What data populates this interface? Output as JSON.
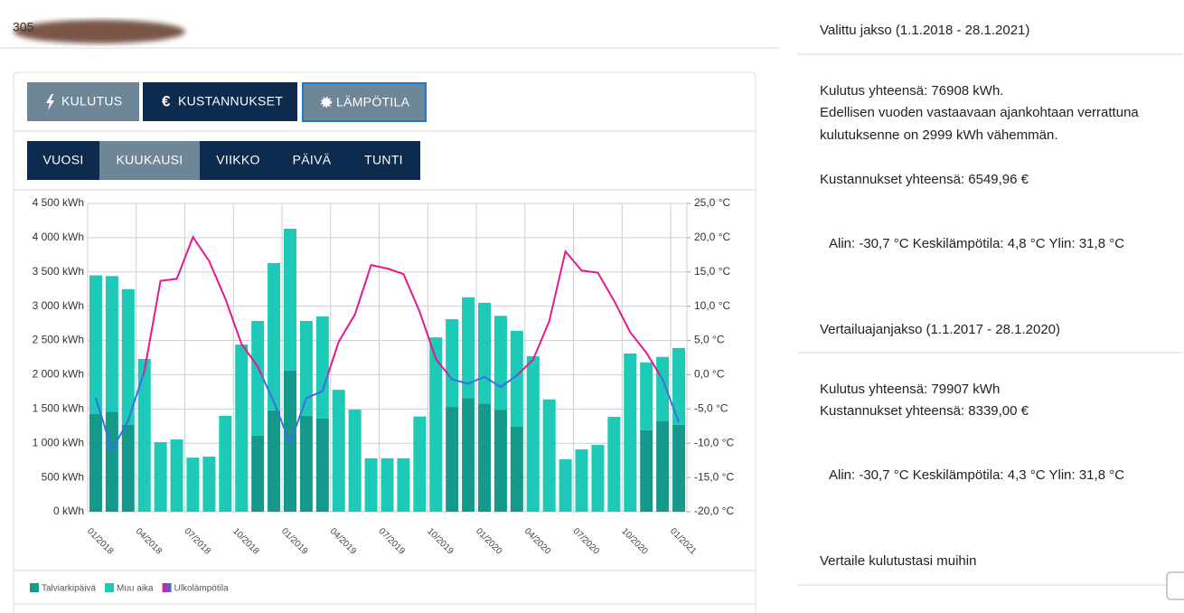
{
  "header": {
    "code": "305"
  },
  "tabs": [
    {
      "label": "KULUTUS"
    },
    {
      "icon": "€",
      "label": "KUSTANNUKSET"
    },
    {
      "label": "LÄMPÖTILA"
    }
  ],
  "periods": [
    "VUOSI",
    "KUUKAUSI",
    "VIIKKO",
    "PÄIVÄ",
    "TUNTI"
  ],
  "chart_data": {
    "type": "bar",
    "stacked": true,
    "categories": [
      "01/2018",
      null,
      null,
      "04/2018",
      null,
      null,
      "07/2018",
      null,
      null,
      "10/2018",
      null,
      null,
      "01/2019",
      null,
      null,
      "04/2019",
      null,
      null,
      "07/2019",
      null,
      null,
      "10/2019",
      null,
      null,
      "01/2020",
      null,
      null,
      "04/2020",
      null,
      null,
      "07/2020",
      null,
      null,
      "10/2020",
      null,
      null,
      "01/2021"
    ],
    "series": [
      {
        "name": "Talviarkipäivä",
        "color": "#14998a",
        "values": [
          1430,
          1460,
          1270,
          0,
          0,
          0,
          0,
          0,
          0,
          0,
          1110,
          1480,
          2060,
          1400,
          1360,
          0,
          0,
          0,
          0,
          0,
          0,
          0,
          1530,
          1660,
          1580,
          1490,
          1240,
          0,
          0,
          0,
          0,
          0,
          0,
          0,
          1190,
          1320,
          1270
        ]
      },
      {
        "name": "Muu aika",
        "color": "#1dc9b7",
        "values": [
          2020,
          1980,
          1980,
          2230,
          1015,
          1055,
          790,
          805,
          1400,
          2440,
          1675,
          2150,
          2070,
          1385,
          1490,
          1780,
          1490,
          780,
          780,
          780,
          1390,
          2545,
          1280,
          1470,
          1470,
          1370,
          1400,
          2270,
          1640,
          765,
          910,
          975,
          1385,
          2310,
          990,
          940,
          1120
        ]
      },
      {
        "name": "Ulkolämpötila",
        "type": "line",
        "axis": "y2",
        "colors": [
          "#e6178f",
          "#3d6ee6"
        ],
        "values": [
          -3.4,
          -11,
          -6.7,
          0.5,
          13.7,
          14.0,
          20.1,
          16.6,
          11.1,
          4.5,
          1.2,
          -4.0,
          -10.0,
          -3.4,
          -2.4,
          4.8,
          8.8,
          16.0,
          15.5,
          14.7,
          9.2,
          2.3,
          -0.7,
          -1.3,
          -0.3,
          -1.8,
          -0.1,
          2.2,
          7.8,
          18.0,
          15.2,
          14.9,
          10.8,
          6.2,
          3.2,
          -0.7,
          -6.9
        ]
      }
    ],
    "ylim": [
      0,
      4500
    ],
    "yticks": [
      {
        "value": 0,
        "label": "0 kWh"
      },
      {
        "value": 500,
        "label": "500 kWh"
      },
      {
        "value": 1000,
        "label": "1 000 kWh"
      },
      {
        "value": 1500,
        "label": "1 500 kWh"
      },
      {
        "value": 2000,
        "label": "2 000 kWh"
      },
      {
        "value": 2500,
        "label": "2 500 kWh"
      },
      {
        "value": 3000,
        "label": "3 000 kWh"
      },
      {
        "value": 3500,
        "label": "3 500 kWh"
      },
      {
        "value": 4000,
        "label": "4 000 kWh"
      },
      {
        "value": 4500,
        "label": "4 500 kWh"
      }
    ],
    "y2lim": [
      -20,
      25
    ],
    "y2ticks": [
      {
        "value": -20,
        "label": "-20,0 °C"
      },
      {
        "value": -15,
        "label": "-15,0 °C"
      },
      {
        "value": -10,
        "label": "-10,0 °C"
      },
      {
        "value": -5,
        "label": "-5,0 °C"
      },
      {
        "value": 0,
        "label": "0,0 °C"
      },
      {
        "value": 5,
        "label": "5,0 °C"
      },
      {
        "value": 10,
        "label": "10,0 °C"
      },
      {
        "value": 15,
        "label": "15,0 °C"
      },
      {
        "value": 20,
        "label": "20,0 °C"
      },
      {
        "value": 25,
        "label": "25,0 °C"
      }
    ],
    "grid": true,
    "legend": "bottom-left"
  },
  "summary": {
    "selected": {
      "title": "Valittu jakso  (1.1.2018 - 28.1.2021)",
      "lines": [
        "Kulutus yhteensä: 76908 kWh.",
        "Edellisen vuoden vastaavaan ajankohtaan verrattuna",
        "kulutuksenne on 2999 kWh vähemmän."
      ],
      "costs": "Kustannukset yhteensä: 6549,96 €",
      "temps": "Alin: -30,7 °C Keskilämpötila: 4,8 °C Ylin: 31,8 °C"
    },
    "comparison": {
      "title": "Vertailuajanjakso (1.1.2017 - 28.1.2020)",
      "lines": [
        "Kulutus yhteensä: 79907 kWh",
        "Kustannukset yhteensä: 8339,00 €"
      ],
      "temps": "Alin: -30,7 °C Keskilämpötila: 4,3 °C Ylin: 31,8 °C"
    },
    "compare_link": "Vertaile kulutustasi muihin"
  }
}
